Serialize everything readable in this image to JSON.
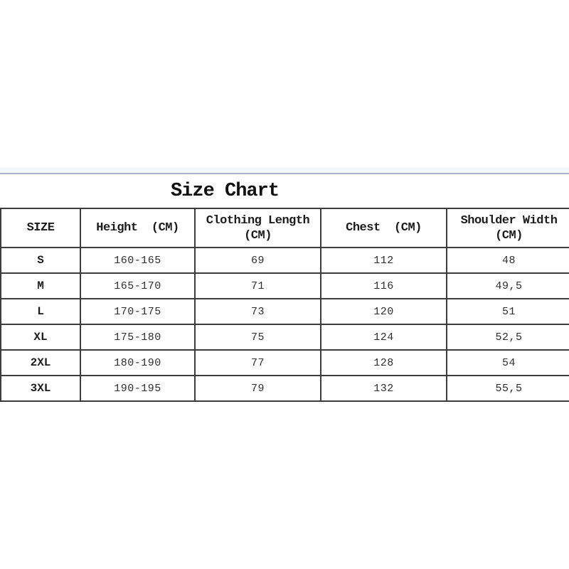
{
  "title": "Size Chart",
  "colors": {
    "divider": "#a9b3c6",
    "table_border": "#3d3d3d",
    "text": "#222222",
    "background": "#ffffff"
  },
  "table": {
    "headers": {
      "size": "SIZE",
      "height": "Height  (CM)",
      "length_line1": "Clothing Length",
      "length_line2": "(CM)",
      "chest": "Chest  (CM)",
      "shoulder_line1": "Shoulder Width",
      "shoulder_line2": "(CM)"
    },
    "rows": [
      {
        "size": "S",
        "height": "160-165",
        "length": "69",
        "chest": "112",
        "shoulder": "48"
      },
      {
        "size": "M",
        "height": "165-170",
        "length": "71",
        "chest": "116",
        "shoulder": "49,5"
      },
      {
        "size": "L",
        "height": "170-175",
        "length": "73",
        "chest": "120",
        "shoulder": "51"
      },
      {
        "size": "XL",
        "height": "175-180",
        "length": "75",
        "chest": "124",
        "shoulder": "52,5"
      },
      {
        "size": "2XL",
        "height": "180-190",
        "length": "77",
        "chest": "128",
        "shoulder": "54"
      },
      {
        "size": "3XL",
        "height": "190-195",
        "length": "79",
        "chest": "132",
        "shoulder": "55,5"
      }
    ]
  },
  "chart_data": {
    "type": "table",
    "title": "Size Chart",
    "columns": [
      "SIZE",
      "Height (CM)",
      "Clothing Length (CM)",
      "Chest (CM)",
      "Shoulder Width (CM)"
    ],
    "rows": [
      [
        "S",
        "160-165",
        69,
        112,
        48
      ],
      [
        "M",
        "165-170",
        71,
        116,
        49.5
      ],
      [
        "L",
        "170-175",
        73,
        120,
        51
      ],
      [
        "XL",
        "175-180",
        75,
        124,
        52.5
      ],
      [
        "2XL",
        "180-190",
        77,
        128,
        54
      ],
      [
        "3XL",
        "190-195",
        79,
        132,
        55.5
      ]
    ]
  }
}
